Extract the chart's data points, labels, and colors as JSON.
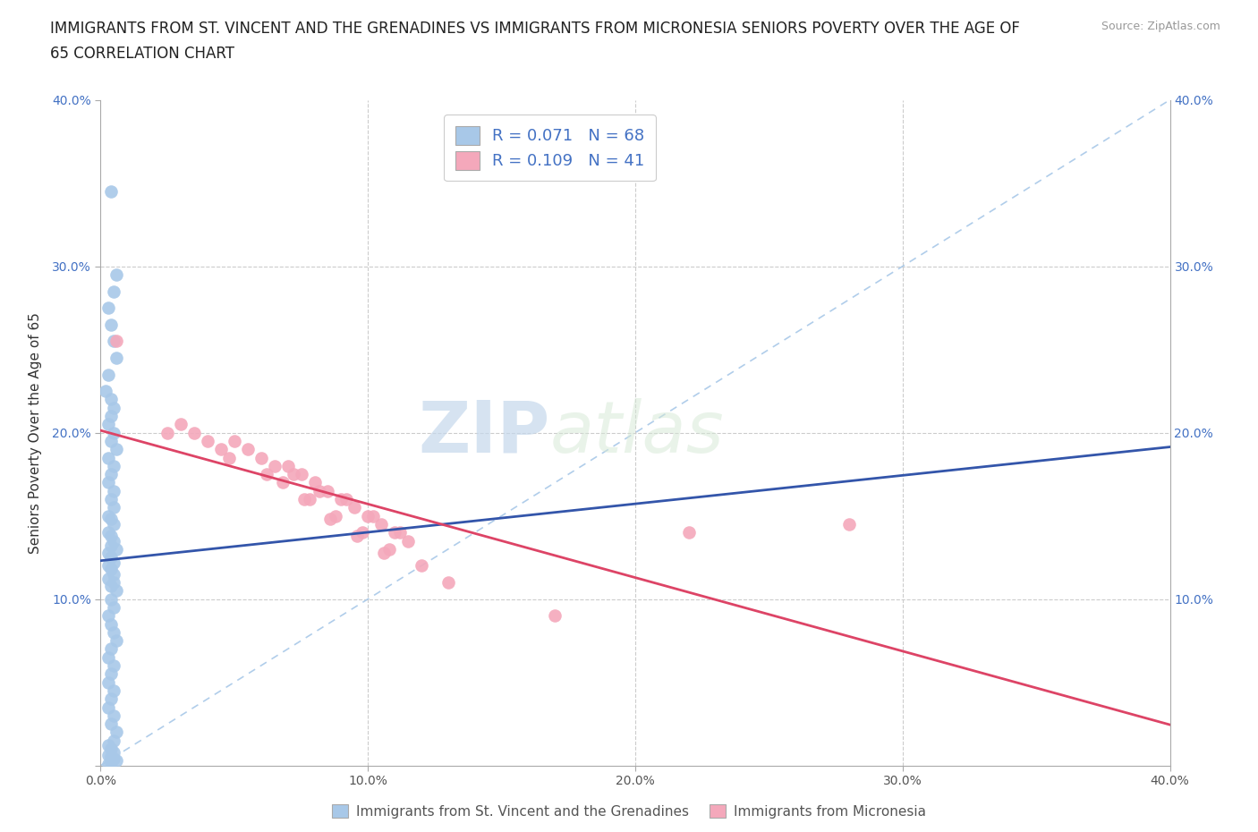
{
  "title_line1": "IMMIGRANTS FROM ST. VINCENT AND THE GRENADINES VS IMMIGRANTS FROM MICRONESIA SENIORS POVERTY OVER THE AGE OF",
  "title_line2": "65 CORRELATION CHART",
  "source_text": "Source: ZipAtlas.com",
  "ylabel": "Seniors Poverty Over the Age of 65",
  "xlabel_blue": "Immigrants from St. Vincent and the Grenadines",
  "xlabel_pink": "Immigrants from Micronesia",
  "xlim": [
    0.0,
    0.4
  ],
  "ylim": [
    0.0,
    0.4
  ],
  "r_blue": 0.071,
  "n_blue": 68,
  "r_pink": 0.109,
  "n_pink": 41,
  "color_blue": "#A8C8E8",
  "color_pink": "#F4A8BB",
  "regression_blue_color": "#3355AA",
  "regression_pink_color": "#DD4466",
  "diagonal_color": "#A8C8E8",
  "watermark_zip": "ZIP",
  "watermark_atlas": "atlas",
  "xtick_labels": [
    "0.0%",
    "",
    "10.0%",
    "",
    "20.0%",
    "",
    "30.0%",
    "",
    "40.0%"
  ],
  "xticks": [
    0.0,
    0.05,
    0.1,
    0.15,
    0.2,
    0.25,
    0.3,
    0.35,
    0.4
  ],
  "ytick_labels": [
    "",
    "10.0%",
    "20.0%",
    "30.0%",
    "40.0%"
  ],
  "yticks": [
    0.0,
    0.1,
    0.2,
    0.3,
    0.4
  ],
  "blue_scatter_x": [
    0.004,
    0.006,
    0.005,
    0.003,
    0.004,
    0.005,
    0.006,
    0.003,
    0.002,
    0.004,
    0.005,
    0.004,
    0.003,
    0.005,
    0.004,
    0.006,
    0.003,
    0.005,
    0.004,
    0.003,
    0.005,
    0.004,
    0.005,
    0.003,
    0.004,
    0.005,
    0.003,
    0.004,
    0.005,
    0.004,
    0.006,
    0.003,
    0.004,
    0.005,
    0.003,
    0.004,
    0.005,
    0.003,
    0.005,
    0.004,
    0.006,
    0.004,
    0.005,
    0.003,
    0.004,
    0.005,
    0.006,
    0.004,
    0.003,
    0.005,
    0.004,
    0.003,
    0.005,
    0.004,
    0.003,
    0.005,
    0.004,
    0.006,
    0.005,
    0.003,
    0.004,
    0.005,
    0.003,
    0.004,
    0.005,
    0.006,
    0.004,
    0.003
  ],
  "blue_scatter_y": [
    0.345,
    0.295,
    0.285,
    0.275,
    0.265,
    0.255,
    0.245,
    0.235,
    0.225,
    0.22,
    0.215,
    0.21,
    0.205,
    0.2,
    0.195,
    0.19,
    0.185,
    0.18,
    0.175,
    0.17,
    0.165,
    0.16,
    0.155,
    0.15,
    0.148,
    0.145,
    0.14,
    0.138,
    0.135,
    0.132,
    0.13,
    0.128,
    0.125,
    0.122,
    0.12,
    0.118,
    0.115,
    0.112,
    0.11,
    0.108,
    0.105,
    0.1,
    0.095,
    0.09,
    0.085,
    0.08,
    0.075,
    0.07,
    0.065,
    0.06,
    0.055,
    0.05,
    0.045,
    0.04,
    0.035,
    0.03,
    0.025,
    0.02,
    0.015,
    0.012,
    0.01,
    0.008,
    0.006,
    0.005,
    0.004,
    0.003,
    0.002,
    0.001
  ],
  "pink_scatter_x": [
    0.006,
    0.025,
    0.04,
    0.055,
    0.06,
    0.07,
    0.075,
    0.08,
    0.085,
    0.09,
    0.095,
    0.1,
    0.105,
    0.11,
    0.115,
    0.05,
    0.065,
    0.072,
    0.082,
    0.092,
    0.102,
    0.112,
    0.03,
    0.045,
    0.068,
    0.078,
    0.088,
    0.098,
    0.108,
    0.035,
    0.048,
    0.062,
    0.076,
    0.086,
    0.096,
    0.106,
    0.12,
    0.13,
    0.22,
    0.28,
    0.17
  ],
  "pink_scatter_y": [
    0.255,
    0.2,
    0.195,
    0.19,
    0.185,
    0.18,
    0.175,
    0.17,
    0.165,
    0.16,
    0.155,
    0.15,
    0.145,
    0.14,
    0.135,
    0.195,
    0.18,
    0.175,
    0.165,
    0.16,
    0.15,
    0.14,
    0.205,
    0.19,
    0.17,
    0.16,
    0.15,
    0.14,
    0.13,
    0.2,
    0.185,
    0.175,
    0.16,
    0.148,
    0.138,
    0.128,
    0.12,
    0.11,
    0.14,
    0.145,
    0.09
  ]
}
